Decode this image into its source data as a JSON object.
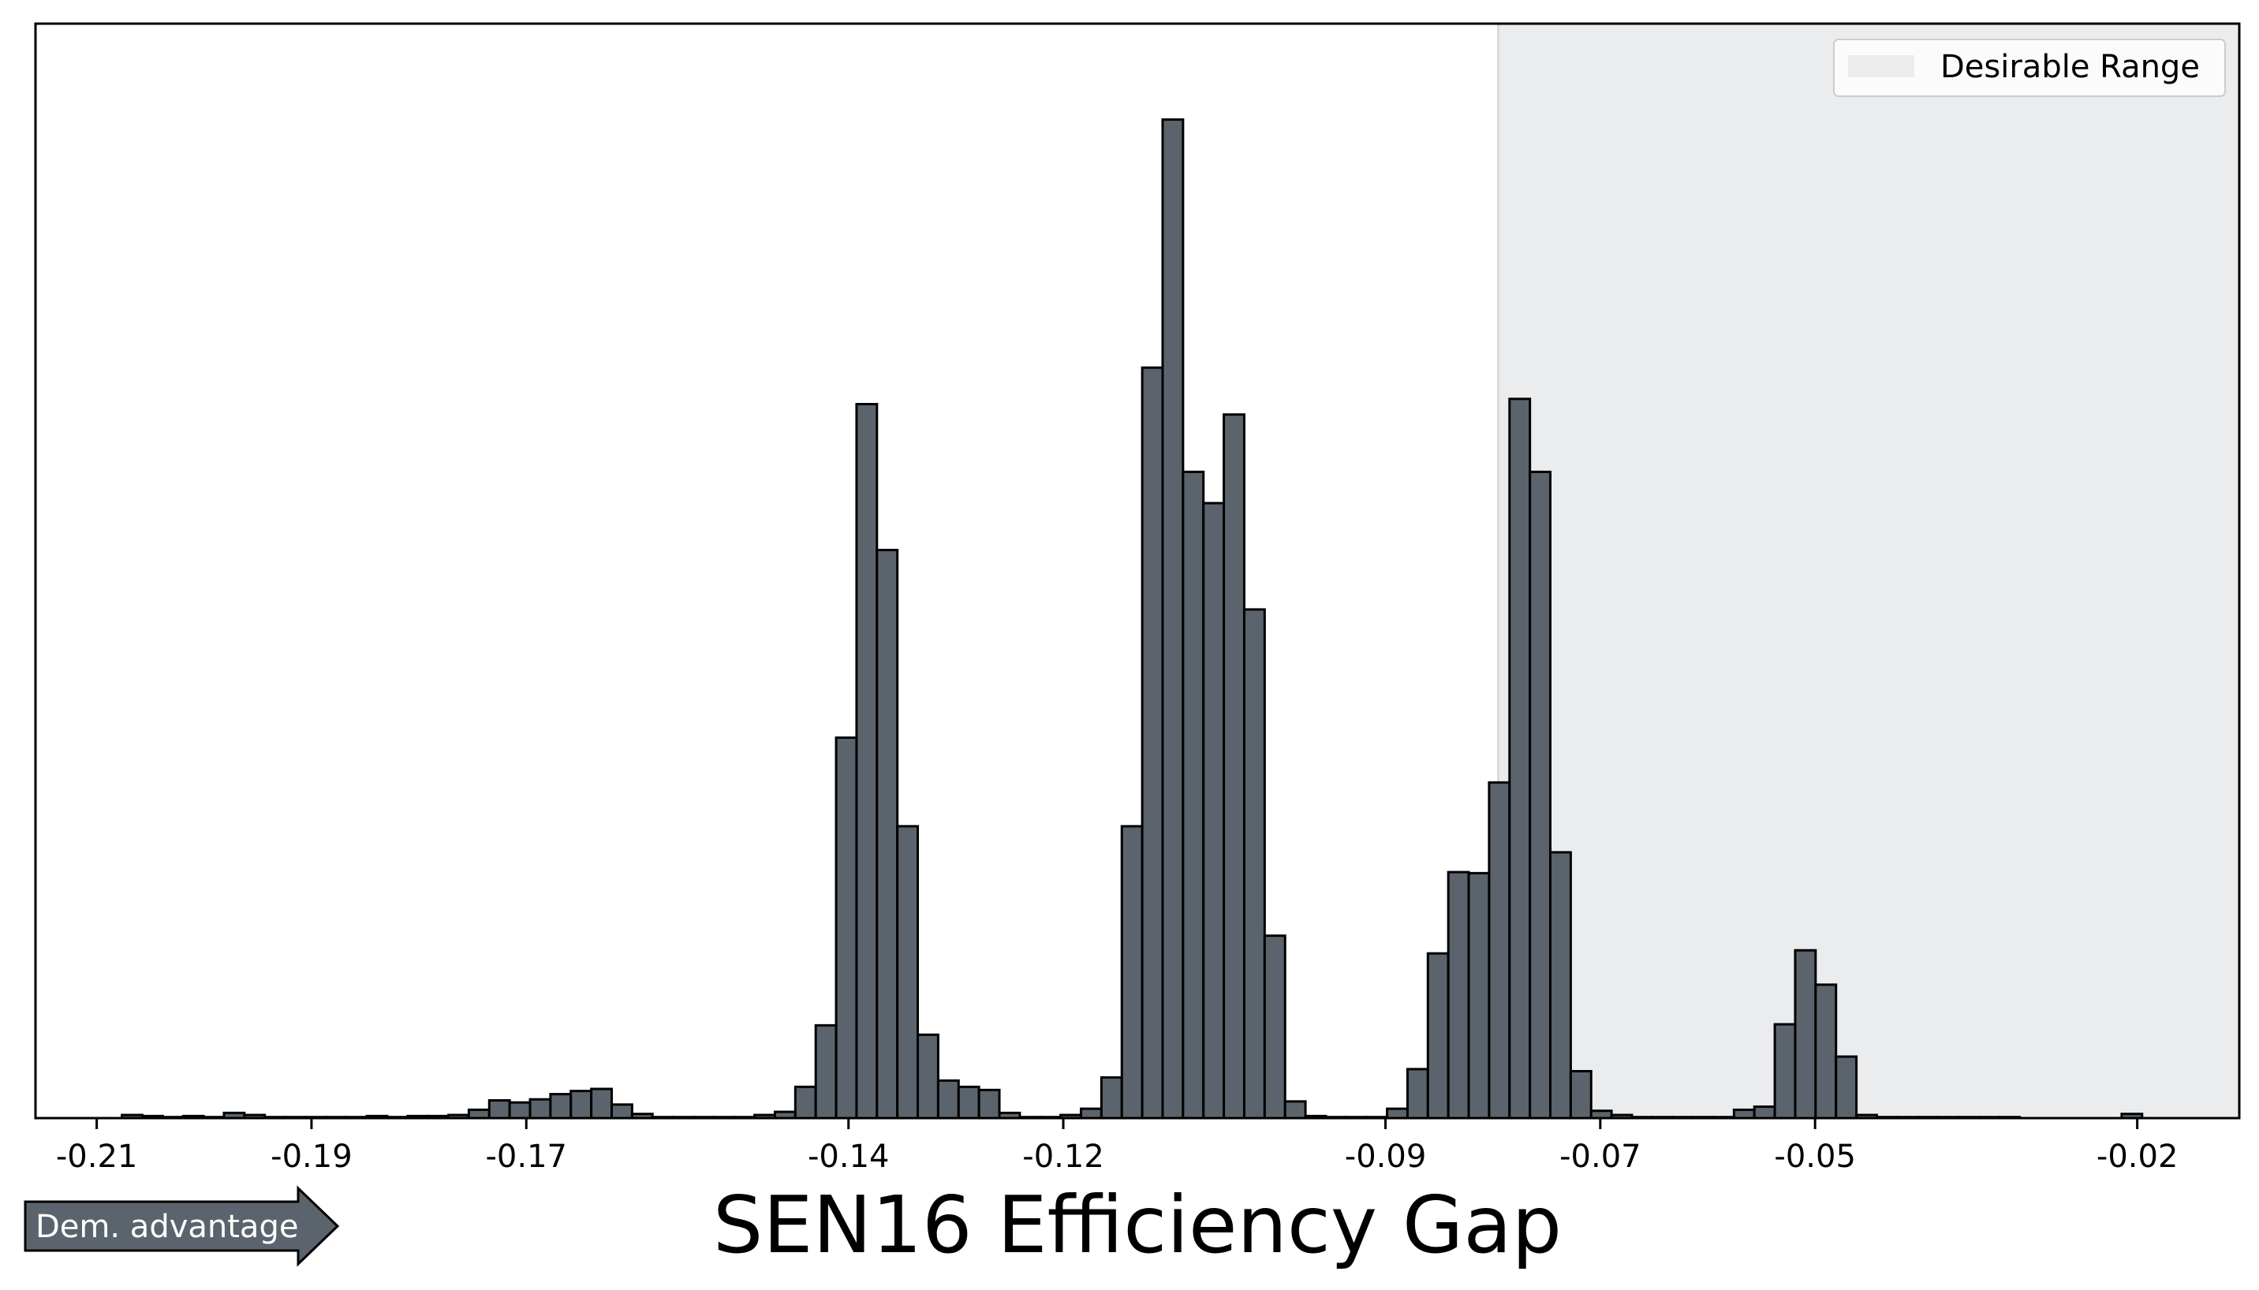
{
  "chart_data": {
    "type": "bar",
    "title": "",
    "xlabel": "SEN16 Efficiency Gap",
    "ylabel": "",
    "xlim": [
      -0.2157,
      -0.0105
    ],
    "ylim": [
      0,
      1.05
    ],
    "grid": false,
    "xticks": [
      -0.21,
      -0.19,
      -0.17,
      -0.14,
      -0.12,
      -0.09,
      -0.07,
      -0.05,
      -0.02
    ],
    "xtick_labels": [
      "-0.21",
      "-0.19",
      "-0.17",
      "-0.14",
      "-0.12",
      "-0.09",
      "-0.07",
      "-0.05",
      "-0.02"
    ],
    "bar_color": "#5b646c",
    "edge_color": "#000000",
    "bin_width": 0.0019,
    "x": [
      -0.2067,
      -0.2048,
      -0.2029,
      -0.201,
      -0.1991,
      -0.1972,
      -0.1953,
      -0.1934,
      -0.1915,
      -0.1896,
      -0.1877,
      -0.1858,
      -0.1839,
      -0.182,
      -0.1801,
      -0.1782,
      -0.1763,
      -0.1744,
      -0.1725,
      -0.1706,
      -0.1687,
      -0.1668,
      -0.1649,
      -0.163,
      -0.1611,
      -0.1592,
      -0.1573,
      -0.1554,
      -0.1535,
      -0.1516,
      -0.1497,
      -0.1478,
      -0.1459,
      -0.144,
      -0.1421,
      -0.1402,
      -0.1383,
      -0.1364,
      -0.1345,
      -0.1326,
      -0.1307,
      -0.1288,
      -0.1269,
      -0.125,
      -0.1231,
      -0.1212,
      -0.1193,
      -0.1174,
      -0.1155,
      -0.1136,
      -0.1117,
      -0.1098,
      -0.1079,
      -0.106,
      -0.1041,
      -0.1022,
      -0.1003,
      -0.0984,
      -0.0965,
      -0.0946,
      -0.0927,
      -0.0908,
      -0.0889,
      -0.087,
      -0.0851,
      -0.0832,
      -0.0813,
      -0.0794,
      -0.0775,
      -0.0756,
      -0.0737,
      -0.0718,
      -0.0699,
      -0.068,
      -0.0661,
      -0.0642,
      -0.0623,
      -0.0604,
      -0.0585,
      -0.0566,
      -0.0547,
      -0.0528,
      -0.0509,
      -0.049,
      -0.0471,
      -0.0452,
      -0.0433,
      -0.0414,
      -0.0395,
      -0.0376,
      -0.0357,
      -0.0338,
      -0.0319
    ],
    "values": [
      0.003,
      0.002,
      0.001,
      0.002,
      0.001,
      0.005,
      0.003,
      0.001,
      0.001,
      0.001,
      0.001,
      0.001,
      0.002,
      0.001,
      0.002,
      0.002,
      0.003,
      0.008,
      0.017,
      0.015,
      0.018,
      0.023,
      0.026,
      0.028,
      0.013,
      0.004,
      0.001,
      0.001,
      0.001,
      0.001,
      0.001,
      0.003,
      0.006,
      0.03,
      0.089,
      0.365,
      0.685,
      0.545,
      0.28,
      0.08,
      0.036,
      0.03,
      0.027,
      0.005,
      0.001,
      0.001,
      0.003,
      0.009,
      0.039,
      0.28,
      0.72,
      0.958,
      0.62,
      0.59,
      0.675,
      0.488,
      0.175,
      0.016,
      0.002,
      0.001,
      0.001,
      0.001,
      0.009,
      0.047,
      0.158,
      0.236,
      0.235,
      0.322,
      0.69,
      0.62,
      0.255,
      0.045,
      0.007,
      0.003,
      0.001,
      0.001,
      0.001,
      0.001,
      0.001,
      0.008,
      0.011,
      0.09,
      0.161,
      0.128,
      0.059,
      0.003,
      0.001,
      0.001,
      0.001,
      0.001,
      0.001,
      0.001,
      0.001
    ],
    "extra_bars": [
      {
        "x": -0.0205,
        "value": 0.004
      }
    ],
    "desirable_range": {
      "start": -0.0795,
      "end": -0.0105,
      "color": "#ebecee"
    },
    "legend": {
      "placement": "top-right",
      "entries": [
        {
          "label": "Desirable Range",
          "swatch_color": "#ebecee"
        }
      ]
    }
  },
  "arrow": {
    "label": "Dem. advantage",
    "color": "#5b646c",
    "text_color": "#ffffff"
  }
}
